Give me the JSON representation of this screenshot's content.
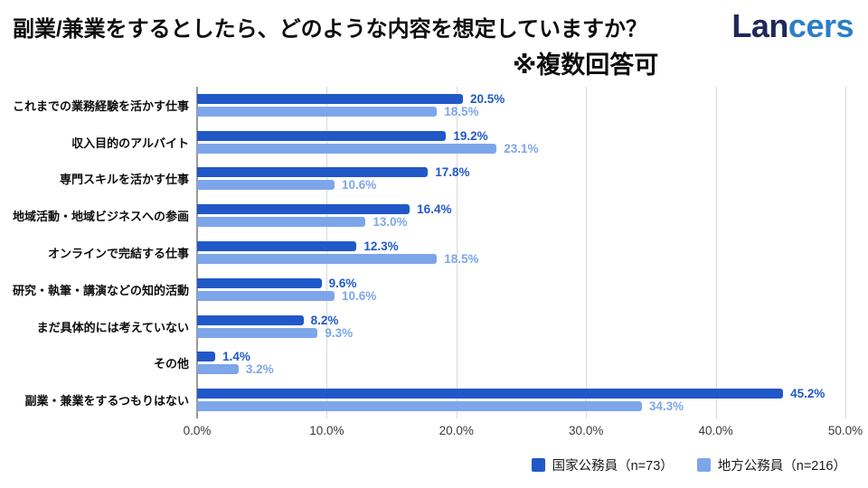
{
  "header": {
    "title": "副業/兼業をするとしたら、どのような内容を想定していますか？",
    "note": "※複数回答可",
    "logo": {
      "part1": "Lan",
      "part2": "cers"
    }
  },
  "chart_data": {
    "type": "bar",
    "orientation": "horizontal",
    "title": "副業/兼業をするとしたら、どのような内容を想定していますか？ ※複数回答可",
    "categories": [
      "これまでの業務経験を活かす仕事",
      "収入目的のアルバイト",
      "専門スキルを活かす仕事",
      "地域活動・地域ビジネスへの参画",
      "オンラインで完結する仕事",
      "研究・執筆・講演などの知的活動",
      "まだ具体的には考えていない",
      "その他",
      "副業・兼業をするつもりはない"
    ],
    "series": [
      {
        "name": "国家公務員（n=73）",
        "color": "#2158c8",
        "values": [
          20.5,
          19.2,
          17.8,
          16.4,
          12.3,
          9.6,
          8.2,
          1.4,
          45.2
        ]
      },
      {
        "name": "地方公務員（n=216）",
        "color": "#7da6ea",
        "values": [
          18.5,
          23.1,
          10.6,
          13.0,
          18.5,
          10.6,
          9.3,
          3.2,
          34.3
        ]
      }
    ],
    "xlim": [
      0,
      50
    ],
    "x_ticks": [
      "0.0%",
      "10.0%",
      "20.0%",
      "30.0%",
      "40.0%",
      "50.0%"
    ],
    "grid": true,
    "legend_position": "bottom-right",
    "value_label_format": "one_decimal_percent"
  },
  "colors": {
    "series1": "#2158c8",
    "series2": "#7da6ea",
    "logo_navy": "#1e2a5a",
    "logo_blue": "#2c7fc8",
    "gridline": "#d9d9d9",
    "axis_line": "#9a9a9a",
    "tick_label": "#3a3a3a"
  }
}
